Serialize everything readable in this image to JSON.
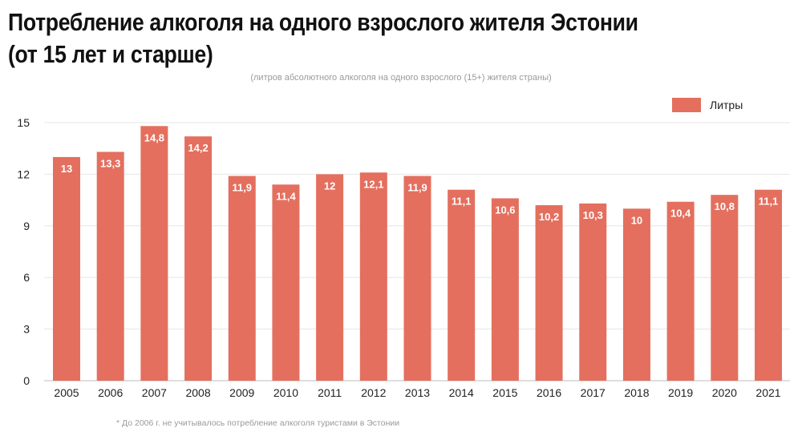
{
  "header": {
    "title_line1": "Потребление алкоголя на одного взрослого жителя Эстонии",
    "title_line2": "(от 15 лет и старше)"
  },
  "chart_data": {
    "type": "bar",
    "title": "Потребление алкоголя на одного взрослого жителя Эстонии (от 15 лет и старше)",
    "subtitle": "(литров абсолютного алкоголя на одного взрослого (15+) жителя страны)",
    "categories": [
      "2005",
      "2006",
      "2007",
      "2008",
      "2009",
      "2010",
      "2011",
      "2012",
      "2013",
      "2014",
      "2015",
      "2016",
      "2017",
      "2018",
      "2019",
      "2020",
      "2021"
    ],
    "series": [
      {
        "name": "Литры",
        "values": [
          13,
          13.3,
          14.8,
          14.2,
          11.9,
          11.4,
          12,
          12.1,
          11.9,
          11.1,
          10.6,
          10.2,
          10.3,
          10,
          10.4,
          10.8,
          11.1
        ],
        "data_labels": [
          "13",
          "13,3",
          "14,8",
          "14,2",
          "11,9",
          "11,4",
          "12",
          "12,1",
          "11,9",
          "11,1",
          "10,6",
          "10,2",
          "10,3",
          "10",
          "10,4",
          "10,8",
          "11,1"
        ],
        "color": "#e46f5e"
      }
    ],
    "yticks": [
      0,
      3,
      6,
      9,
      12,
      15
    ],
    "ylim": [
      0,
      15
    ],
    "grid": true,
    "legend_position": "top-right",
    "footnote": "* До 2006 г. не учитывалось потребление алкоголя туристами в Эстонии"
  }
}
